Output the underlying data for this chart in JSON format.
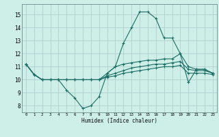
{
  "bg_color": "#ceeee8",
  "grid_color": "#b0cece",
  "line_color": "#1a6e64",
  "xlabel": "Humidex (Indice chaleur)",
  "xlim": [
    -0.5,
    23.5
  ],
  "ylim": [
    7.5,
    15.8
  ],
  "xticks": [
    0,
    1,
    2,
    3,
    4,
    5,
    6,
    7,
    8,
    9,
    10,
    11,
    12,
    13,
    14,
    15,
    16,
    17,
    18,
    19,
    20,
    21,
    22,
    23
  ],
  "yticks": [
    8,
    9,
    10,
    11,
    12,
    13,
    14,
    15
  ],
  "lines": [
    [
      11.2,
      10.4,
      10.0,
      10.0,
      10.0,
      9.2,
      8.6,
      7.8,
      8.0,
      8.7,
      10.5,
      11.0,
      12.8,
      14.0,
      15.2,
      15.2,
      14.7,
      13.2,
      13.2,
      12.0,
      9.8,
      10.8,
      10.8,
      10.5
    ],
    [
      11.2,
      10.4,
      10.0,
      10.0,
      10.0,
      10.0,
      10.0,
      10.0,
      10.0,
      10.0,
      10.5,
      11.0,
      11.2,
      11.3,
      11.4,
      11.5,
      11.5,
      11.6,
      11.6,
      12.0,
      11.0,
      10.8,
      10.8,
      10.5
    ],
    [
      11.2,
      10.4,
      10.0,
      10.0,
      10.0,
      10.0,
      10.0,
      10.0,
      10.0,
      10.0,
      10.3,
      10.5,
      10.7,
      10.9,
      11.0,
      11.1,
      11.2,
      11.2,
      11.3,
      11.4,
      10.8,
      10.7,
      10.7,
      10.5
    ],
    [
      11.2,
      10.4,
      10.0,
      10.0,
      10.0,
      10.0,
      10.0,
      10.0,
      10.0,
      10.0,
      10.2,
      10.3,
      10.5,
      10.6,
      10.7,
      10.8,
      10.9,
      11.0,
      11.0,
      11.1,
      10.5,
      10.5,
      10.5,
      10.4
    ]
  ]
}
